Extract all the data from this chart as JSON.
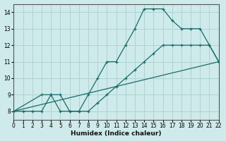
{
  "xlabel": "Humidex (Indice chaleur)",
  "xlim": [
    0,
    22
  ],
  "ylim": [
    7.5,
    14.5
  ],
  "xticks": [
    0,
    1,
    2,
    3,
    4,
    5,
    6,
    7,
    8,
    9,
    10,
    11,
    12,
    13,
    14,
    15,
    16,
    17,
    18,
    19,
    20,
    21,
    22
  ],
  "yticks": [
    8,
    9,
    10,
    11,
    12,
    13,
    14
  ],
  "bg_color": "#ceeaea",
  "grid_color": "#aed4d2",
  "line_color": "#1a6b6b",
  "line1_x": [
    0,
    1,
    2,
    3,
    4,
    5,
    6,
    7,
    8,
    9,
    10,
    11,
    12,
    13,
    14,
    15,
    16,
    17,
    18,
    19,
    20,
    21,
    22
  ],
  "line1_y": [
    8,
    8,
    8,
    8,
    9,
    9,
    8,
    8,
    9,
    10,
    11,
    11,
    12,
    13,
    14.2,
    14.2,
    14.2,
    13.5,
    13,
    13,
    13,
    12,
    11
  ],
  "line2_x": [
    0,
    3,
    4,
    5,
    6,
    7,
    8,
    9,
    10,
    11,
    12,
    13,
    14,
    15,
    16,
    17,
    18,
    19,
    20,
    21,
    22
  ],
  "line2_y": [
    8,
    9,
    9,
    8,
    8,
    8,
    8,
    8.5,
    9,
    9.5,
    10,
    10.5,
    11,
    11.5,
    12,
    12,
    12,
    12,
    12,
    12,
    11
  ],
  "line3_x": [
    0,
    22
  ],
  "line3_y": [
    8,
    11
  ]
}
